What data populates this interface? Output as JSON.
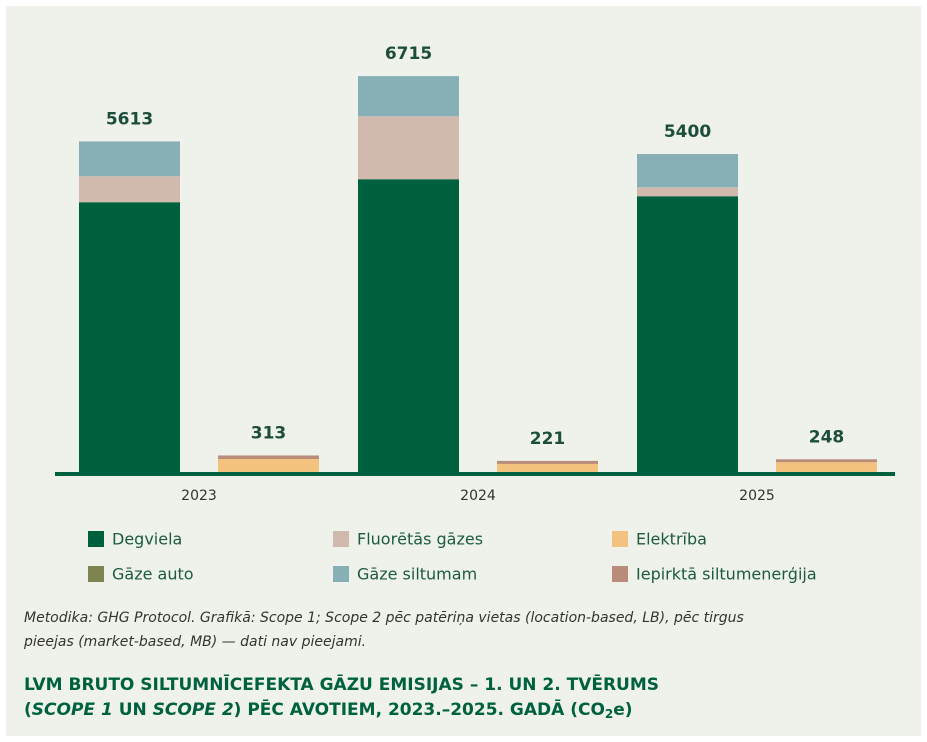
{
  "chart_data": {
    "type": "stacked_bar",
    "categories": [
      "2023",
      null,
      "2024",
      null,
      "2025",
      null
    ],
    "ylim": [
      0,
      8000
    ],
    "series": [
      {
        "name": "Degviela",
        "color": "#00613f",
        "values": [
          4587,
          null,
          4975,
          null,
          4688,
          null
        ]
      },
      {
        "name": "Fluorētās gāzes",
        "color": "#d2b9ae",
        "values": [
          438,
          null,
          1062,
          null,
          152,
          null
        ]
      },
      {
        "name": "Elektrība",
        "color": "#f3c27e",
        "values": [
          null,
          253,
          null,
          170,
          null,
          200
        ]
      },
      {
        "name": "Gāze auto",
        "color": "#7d8450",
        "values": [
          null,
          0,
          null,
          0,
          null,
          0
        ]
      },
      {
        "name": "Gāze siltumam",
        "color": "#87afb6",
        "values": [
          588,
          null,
          678,
          null,
          560,
          null
        ]
      },
      {
        "name": "Iepirktā siltumenerģija",
        "color": "#b98d79",
        "values": [
          null,
          60,
          null,
          51,
          null,
          48
        ]
      }
    ],
    "totals": [
      5613,
      313,
      6715,
      221,
      5400,
      248
    ],
    "note": [
      "Metodika: GHG Protocol. Grafikā: Scope 1; Scope 2 pēc patēriņa vietas (location-based, LB), pēc tirgus",
      "pieejas (market-based, MB) — dati nav pieejami."
    ],
    "title": [
      "LVM BRUTO SILTUMNĪCEFEKTA GĀZU EMISIJAS – 1. UN 2. TVĒRUMS",
      "(",
      "SCOPE 1",
      " UN ",
      "SCOPE 2",
      ") PĒC AVOTIEM, 2023.–2025. GADĀ (CO",
      "2",
      "e)"
    ]
  }
}
